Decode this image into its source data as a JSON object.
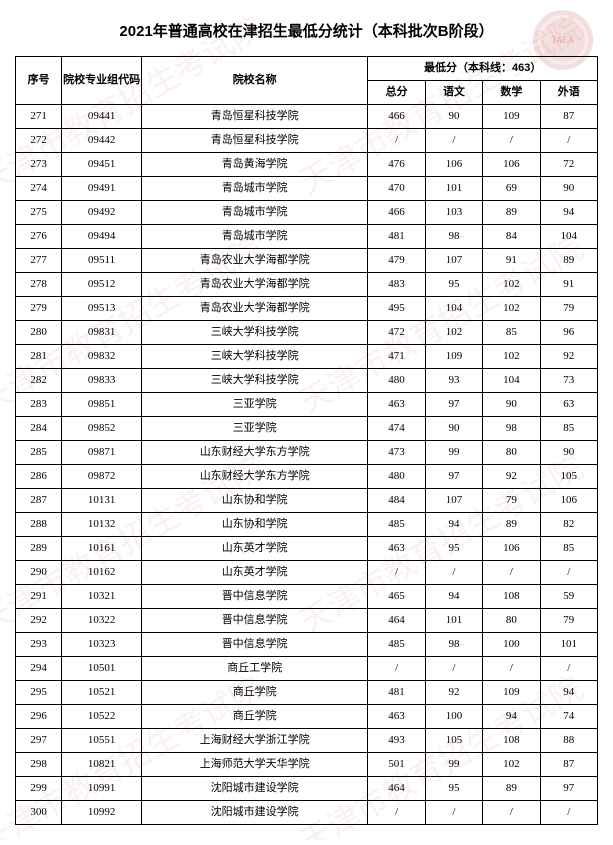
{
  "title": "2021年普通高校在津招生最低分统计（本科批次B阶段）",
  "watermark_text": "天津市教育招生考试院",
  "headers": {
    "seq": "序号",
    "code": "院校专业组代码",
    "name": "院校名称",
    "score_group": "最低分（本科线：463）",
    "total": "总分",
    "chinese": "语文",
    "math": "数学",
    "foreign": "外语"
  },
  "rows": [
    {
      "seq": "271",
      "code": "09441",
      "name": "青岛恒星科技学院",
      "total": "466",
      "ch": "90",
      "ma": "109",
      "fo": "87"
    },
    {
      "seq": "272",
      "code": "09442",
      "name": "青岛恒星科技学院",
      "total": "/",
      "ch": "/",
      "ma": "/",
      "fo": "/"
    },
    {
      "seq": "273",
      "code": "09451",
      "name": "青岛黄海学院",
      "total": "476",
      "ch": "106",
      "ma": "106",
      "fo": "72"
    },
    {
      "seq": "274",
      "code": "09491",
      "name": "青岛城市学院",
      "total": "470",
      "ch": "101",
      "ma": "69",
      "fo": "90"
    },
    {
      "seq": "275",
      "code": "09492",
      "name": "青岛城市学院",
      "total": "466",
      "ch": "103",
      "ma": "89",
      "fo": "94"
    },
    {
      "seq": "276",
      "code": "09494",
      "name": "青岛城市学院",
      "total": "481",
      "ch": "98",
      "ma": "84",
      "fo": "104"
    },
    {
      "seq": "277",
      "code": "09511",
      "name": "青岛农业大学海都学院",
      "total": "479",
      "ch": "107",
      "ma": "91",
      "fo": "89"
    },
    {
      "seq": "278",
      "code": "09512",
      "name": "青岛农业大学海都学院",
      "total": "483",
      "ch": "95",
      "ma": "102",
      "fo": "91"
    },
    {
      "seq": "279",
      "code": "09513",
      "name": "青岛农业大学海都学院",
      "total": "495",
      "ch": "104",
      "ma": "102",
      "fo": "79"
    },
    {
      "seq": "280",
      "code": "09831",
      "name": "三峡大学科技学院",
      "total": "472",
      "ch": "102",
      "ma": "85",
      "fo": "96"
    },
    {
      "seq": "281",
      "code": "09832",
      "name": "三峡大学科技学院",
      "total": "471",
      "ch": "109",
      "ma": "102",
      "fo": "92"
    },
    {
      "seq": "282",
      "code": "09833",
      "name": "三峡大学科技学院",
      "total": "480",
      "ch": "93",
      "ma": "104",
      "fo": "73"
    },
    {
      "seq": "283",
      "code": "09851",
      "name": "三亚学院",
      "total": "463",
      "ch": "97",
      "ma": "90",
      "fo": "63"
    },
    {
      "seq": "284",
      "code": "09852",
      "name": "三亚学院",
      "total": "474",
      "ch": "90",
      "ma": "98",
      "fo": "85"
    },
    {
      "seq": "285",
      "code": "09871",
      "name": "山东财经大学东方学院",
      "total": "473",
      "ch": "99",
      "ma": "80",
      "fo": "90"
    },
    {
      "seq": "286",
      "code": "09872",
      "name": "山东财经大学东方学院",
      "total": "480",
      "ch": "97",
      "ma": "92",
      "fo": "105"
    },
    {
      "seq": "287",
      "code": "10131",
      "name": "山东协和学院",
      "total": "484",
      "ch": "107",
      "ma": "79",
      "fo": "106"
    },
    {
      "seq": "288",
      "code": "10132",
      "name": "山东协和学院",
      "total": "485",
      "ch": "94",
      "ma": "89",
      "fo": "82"
    },
    {
      "seq": "289",
      "code": "10161",
      "name": "山东英才学院",
      "total": "463",
      "ch": "95",
      "ma": "106",
      "fo": "85"
    },
    {
      "seq": "290",
      "code": "10162",
      "name": "山东英才学院",
      "total": "/",
      "ch": "/",
      "ma": "/",
      "fo": "/"
    },
    {
      "seq": "291",
      "code": "10321",
      "name": "晋中信息学院",
      "total": "465",
      "ch": "94",
      "ma": "108",
      "fo": "59"
    },
    {
      "seq": "292",
      "code": "10322",
      "name": "晋中信息学院",
      "total": "464",
      "ch": "101",
      "ma": "80",
      "fo": "79"
    },
    {
      "seq": "293",
      "code": "10323",
      "name": "晋中信息学院",
      "total": "485",
      "ch": "98",
      "ma": "100",
      "fo": "101"
    },
    {
      "seq": "294",
      "code": "10501",
      "name": "商丘工学院",
      "total": "/",
      "ch": "/",
      "ma": "/",
      "fo": "/"
    },
    {
      "seq": "295",
      "code": "10521",
      "name": "商丘学院",
      "total": "481",
      "ch": "92",
      "ma": "109",
      "fo": "94"
    },
    {
      "seq": "296",
      "code": "10522",
      "name": "商丘学院",
      "total": "463",
      "ch": "100",
      "ma": "94",
      "fo": "74"
    },
    {
      "seq": "297",
      "code": "10551",
      "name": "上海财经大学浙江学院",
      "total": "493",
      "ch": "105",
      "ma": "108",
      "fo": "88"
    },
    {
      "seq": "298",
      "code": "10821",
      "name": "上海师范大学天华学院",
      "total": "501",
      "ch": "99",
      "ma": "102",
      "fo": "87"
    },
    {
      "seq": "299",
      "code": "10991",
      "name": "沈阳城市建设学院",
      "total": "464",
      "ch": "95",
      "ma": "89",
      "fo": "97"
    },
    {
      "seq": "300",
      "code": "10992",
      "name": "沈阳城市建设学院",
      "total": "/",
      "ch": "/",
      "ma": "/",
      "fo": "/"
    }
  ],
  "style": {
    "border_color": "#000000",
    "header_bg": "#ffffff",
    "font_size_body": 11,
    "font_size_title": 15,
    "watermark_color": "rgba(200,60,60,0.08)"
  }
}
